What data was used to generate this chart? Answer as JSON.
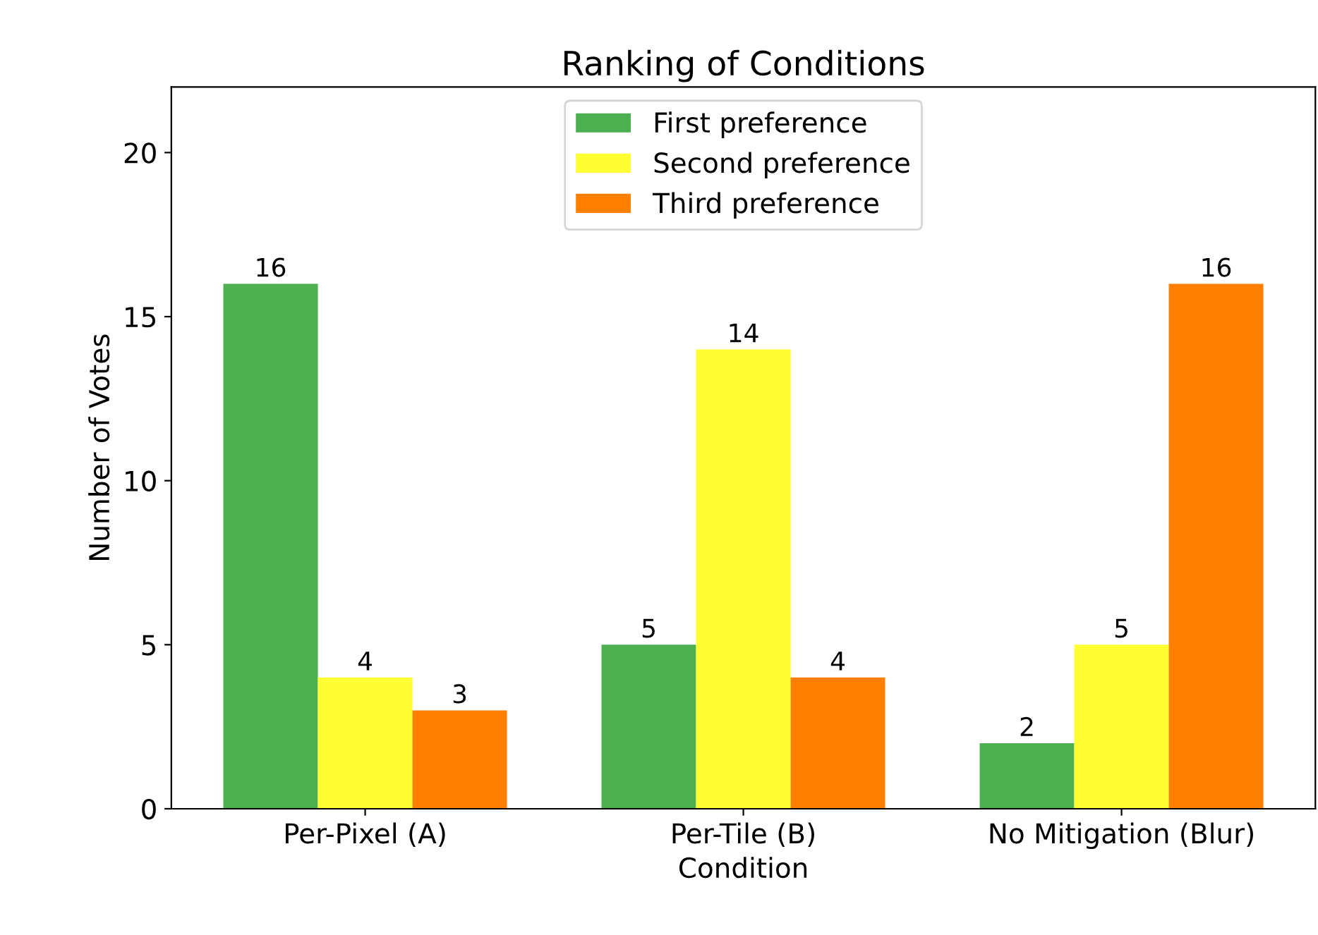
{
  "chart_data": {
    "type": "bar",
    "title": "Ranking of Conditions",
    "xlabel": "Condition",
    "ylabel": "Number of Votes",
    "categories": [
      "Per-Pixel (A)",
      "Per-Tile (B)",
      "No Mitigation (Blur)"
    ],
    "series": [
      {
        "name": "First preference",
        "color": "#4caf50",
        "values": [
          16,
          5,
          2
        ]
      },
      {
        "name": "Second preference",
        "color": "#ffff33",
        "values": [
          4,
          14,
          5
        ]
      },
      {
        "name": "Third preference",
        "color": "#ff7f00",
        "values": [
          3,
          4,
          16
        ]
      }
    ],
    "ylim": [
      0,
      22
    ],
    "yticks": [
      0,
      5,
      10,
      15,
      20
    ],
    "data_labels": true,
    "legend": "top",
    "grid": false
  }
}
